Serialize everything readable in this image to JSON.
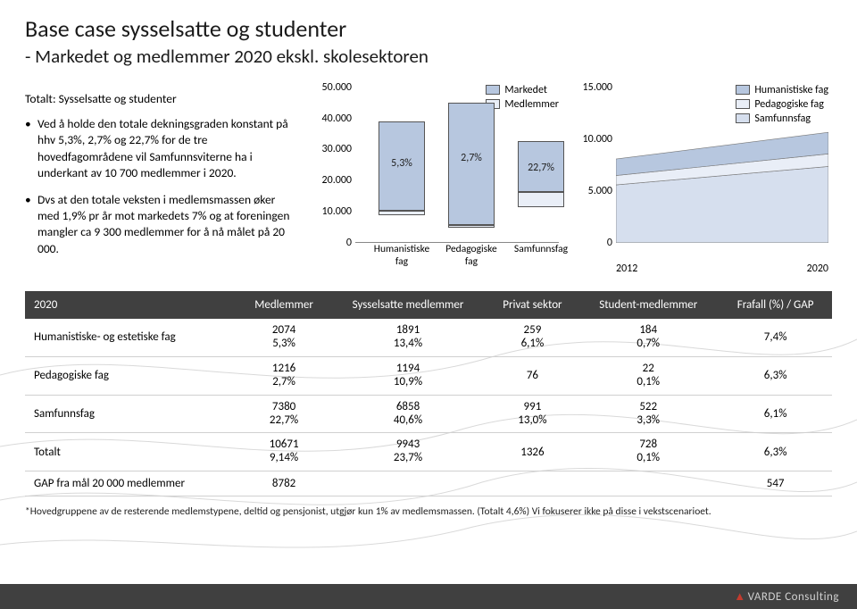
{
  "header": {
    "title": "Base case sysselsatte og studenter",
    "subtitle": "- Markedet og medlemmer 2020 ekskl. skolesektoren"
  },
  "left": {
    "heading": "Totalt: Sysselsatte og studenter",
    "bullet1": "Ved å holde den totale dekningsgraden konstant på hhv 5,3%, 2,7% og 22,7% for de tre hovedfagområdene vil Samfunnsviterne ha i underkant av 10 700 medlemmer i 2020.",
    "bullet2": "Dvs at den totale veksten i medlemsmassen øker med 1,9% pr år mot markedets 7% og at foreningen mangler ca 9 300 medlemmer for å nå målet på 20 000."
  },
  "bar_chart": {
    "legend_market": "Markedet",
    "legend_members": "Medlemmer",
    "color_market": "#b7c7df",
    "color_members": "#e9eef7",
    "border_color": "#555555",
    "y_ticks": [
      "50.000",
      "40.000",
      "30.000",
      "20.000",
      "10.000",
      "0"
    ],
    "y_max": 50000,
    "categories": [
      "Humanistiske fag",
      "Pedagogiske fag",
      "Samfunnsfag"
    ],
    "series": [
      {
        "market": 39000,
        "members": 2074,
        "top_label": "5,3%"
      },
      {
        "market": 45000,
        "members": 1216,
        "top_label": "2,7%"
      },
      {
        "market": 32500,
        "members": 7380,
        "top_label": "22,7%"
      }
    ]
  },
  "area_chart": {
    "legend1": "Humanistiske fag",
    "legend2": "Pedagogiske fag",
    "legend3": "Samfunnsfag",
    "color1": "#b7c7df",
    "color2": "#e9eef7",
    "color3": "#d6dfee",
    "y_ticks": [
      "15.000",
      "10.000",
      "5.000",
      "0"
    ],
    "y_max": 15000,
    "x_start": "2012",
    "x_end": "2020",
    "series1": {
      "start": 1600,
      "end": 2074
    },
    "series2": {
      "start": 900,
      "end": 1216
    },
    "series3": {
      "start": 5600,
      "end": 7380
    }
  },
  "table": {
    "headers": [
      "2020",
      "Medlemmer",
      "Sysselsatte medlemmer",
      "Privat sektor",
      "Student-medlemmer",
      "Frafall (%) / GAP"
    ],
    "rows": [
      {
        "label": "Humanistiske- og estetiske fag",
        "c1a": "2074",
        "c1b": "5,3%",
        "c2a": "1891",
        "c2b": "13,4%",
        "c3a": "259",
        "c3b": "6,1%",
        "c4a": "184",
        "c4b": "0,7%",
        "c5": "7,4%"
      },
      {
        "label": "Pedagogiske fag",
        "c1a": "1216",
        "c1b": "2,7%",
        "c2a": "1194",
        "c2b": "10,9%",
        "c3a": "76",
        "c3b": "",
        "c4a": "22",
        "c4b": "0,1%",
        "c5": "6,3%"
      },
      {
        "label": "Samfunnsfag",
        "c1a": "7380",
        "c1b": "22,7%",
        "c2a": "6858",
        "c2b": "40,6%",
        "c3a": "991",
        "c3b": "13,0%",
        "c4a": "522",
        "c4b": "3,3%",
        "c5": "6,1%"
      },
      {
        "label": "Totalt",
        "c1a": "10671",
        "c1b": "9,14%",
        "c2a": "9943",
        "c2b": "23,7%",
        "c3a": "1326",
        "c3b": "",
        "c4a": "728",
        "c4b": "0,1%",
        "c5": "6,3%"
      },
      {
        "label": "GAP fra mål 20 000  medlemmer",
        "c1a": "8782",
        "c1b": "",
        "c2a": "",
        "c2b": "",
        "c3a": "",
        "c3b": "",
        "c4a": "",
        "c4b": "",
        "c5": "547"
      }
    ]
  },
  "footnote": "*Hovedgruppene av de resterende medlemstypene, deltid og pensjonist, utgjør kun 1% av medlemsmassen. (Totalt 4,6%)  Vi fokuserer ikke på disse i vekstscenarioet.",
  "footer": {
    "brand_symbol": "▲",
    "brand_text": "VARDE Consulting"
  }
}
